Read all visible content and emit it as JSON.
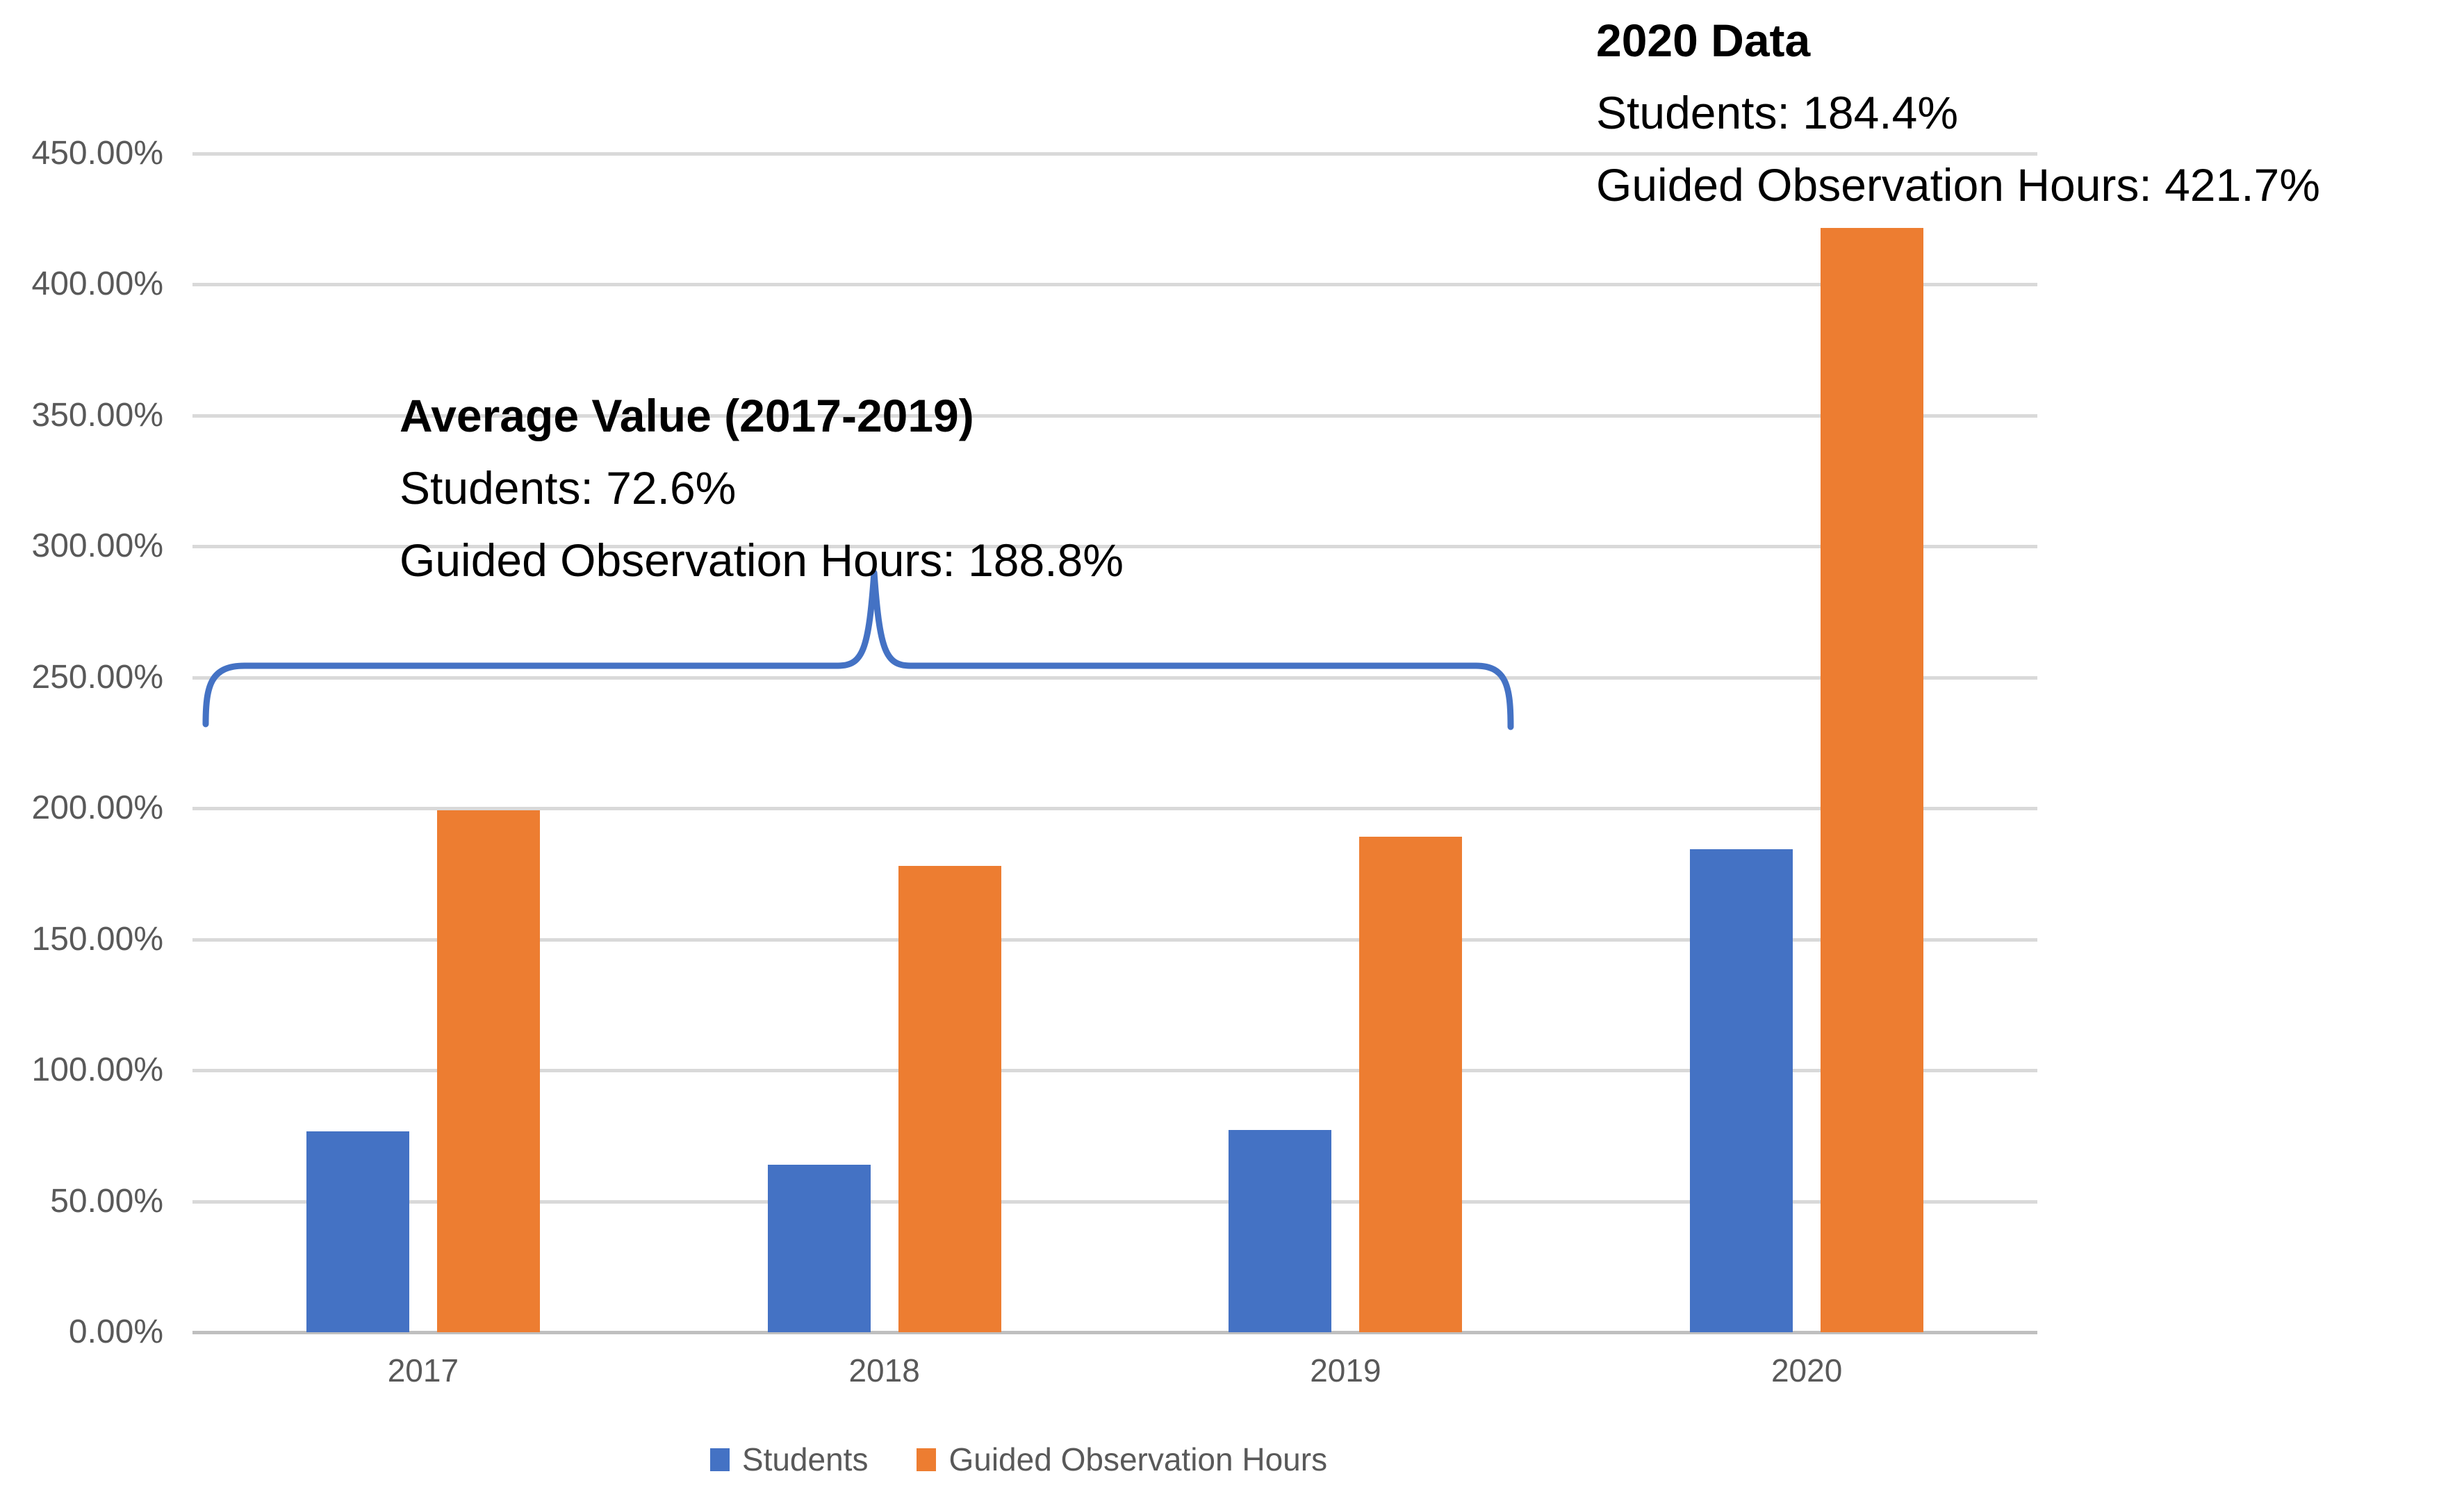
{
  "chart_data": {
    "type": "bar",
    "title": "",
    "categories": [
      "2017",
      "2018",
      "2019",
      "2020"
    ],
    "series": [
      {
        "name": "Students",
        "color": "#4472C4",
        "values": [
          76.6,
          63.9,
          77.3,
          184.4
        ]
      },
      {
        "name": "Guided Observation Hours",
        "color": "#ED7D31",
        "values": [
          199.2,
          178.1,
          189.1,
          421.7
        ]
      }
    ],
    "y_axis": {
      "min": 0,
      "max": 450,
      "step": 50,
      "tick_labels": [
        "0.00%",
        "50.00%",
        "100.00%",
        "150.00%",
        "200.00%",
        "250.00%",
        "300.00%",
        "350.00%",
        "400.00%",
        "450.00%"
      ]
    },
    "x_axis": {
      "labels": [
        "2017",
        "2018",
        "2019",
        "2020"
      ]
    },
    "grid": true,
    "legend_position": "bottom",
    "brace_span": "2017-2019"
  },
  "annotations": {
    "average": {
      "title": "Average Value (2017-2019)",
      "line_students": "Students: 72.6%",
      "line_hours": "Guided Observation Hours: 188.8%"
    },
    "data2020": {
      "title": "2020 Data",
      "line_students": "Students: 184.4%",
      "line_hours": "Guided Observation Hours: 421.7%"
    }
  },
  "legend": {
    "items": [
      {
        "label": "Students",
        "color": "#4472C4"
      },
      {
        "label": "Guided Observation Hours",
        "color": "#ED7D31"
      }
    ]
  },
  "colors": {
    "bar_blue": "#4472C4",
    "bar_orange": "#ED7D31",
    "gridline": "#D9D9D9",
    "axis_line": "#BFBFBF",
    "axis_text": "#595959",
    "annotation_text": "#000000",
    "brace": "#4472C4"
  }
}
